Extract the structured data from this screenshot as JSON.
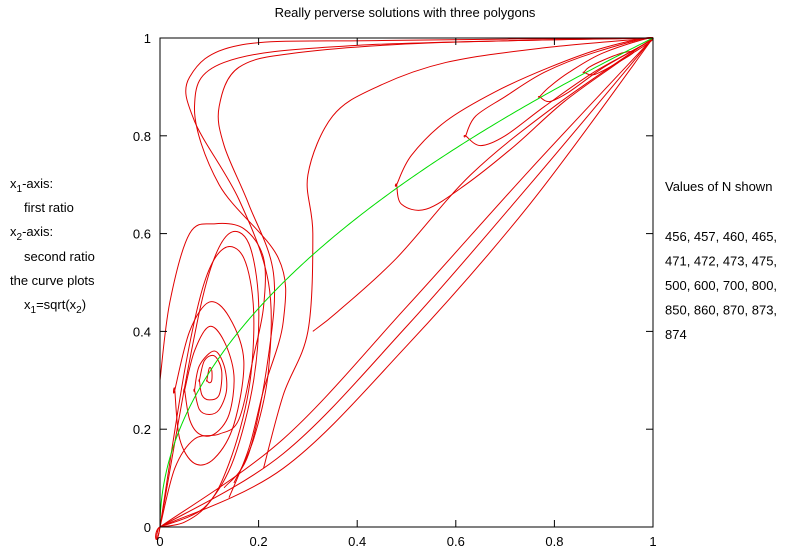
{
  "chart_data": {
    "type": "line",
    "title": "Really perverse solutions with three polygons",
    "xlabel": "",
    "ylabel": "",
    "xlim": [
      0,
      1
    ],
    "ylim": [
      0,
      1
    ],
    "xticks": [
      "0",
      "0.2",
      "0.4",
      "0.6",
      "0.8",
      "1"
    ],
    "yticks": [
      "0",
      "0.2",
      "0.4",
      "0.6",
      "0.8",
      "1"
    ],
    "grid": false,
    "legend_left": [
      {
        "label": "x",
        "sub": "1",
        "rest": "-axis:"
      },
      {
        "label": "first ratio"
      },
      {
        "label": "x",
        "sub": "2",
        "rest": "-axis:"
      },
      {
        "label": "second ratio"
      },
      {
        "label": "the curve plots"
      },
      {
        "label": "x",
        "sub": "1",
        "rest": "=sqrt(x",
        "sub2": "2",
        "rest2": ")"
      }
    ],
    "legend_right_title": "Values of N shown",
    "legend_right_lines": [
      "456, 457, 460, 465,",
      "471, 472, 473, 475,",
      "500, 600, 700, 800,",
      "850, 860, 870, 873,",
      "874"
    ],
    "colors": {
      "curves": "#e00000",
      "reference": "#00dd00",
      "axes": "#000000"
    },
    "reference_curve": {
      "name": "x1=sqrt(x2)",
      "color": "#00dd00"
    },
    "series": [
      {
        "closed": true,
        "values": [
          [
            0.0,
            0.0
          ],
          [
            0.06,
            0.34
          ],
          [
            0.1,
            0.52
          ],
          [
            0.14,
            0.6
          ],
          [
            0.18,
            0.58
          ],
          [
            0.2,
            0.46
          ],
          [
            0.19,
            0.3
          ],
          [
            0.15,
            0.14
          ],
          [
            0.1,
            0.05
          ],
          [
            0.05,
            0.01
          ],
          [
            0.0,
            0.0
          ]
        ]
      },
      {
        "closed": true,
        "values": [
          [
            0.0,
            0.0
          ],
          [
            0.05,
            0.32
          ],
          [
            0.09,
            0.5
          ],
          [
            0.13,
            0.57
          ],
          [
            0.17,
            0.55
          ],
          [
            0.19,
            0.44
          ],
          [
            0.18,
            0.28
          ],
          [
            0.14,
            0.13
          ],
          [
            0.09,
            0.04
          ],
          [
            0.0,
            0.0
          ]
        ]
      },
      {
        "closed": true,
        "values": [
          [
            0.03,
            0.28
          ],
          [
            0.06,
            0.4
          ],
          [
            0.1,
            0.46
          ],
          [
            0.14,
            0.43
          ],
          [
            0.17,
            0.34
          ],
          [
            0.15,
            0.21
          ],
          [
            0.11,
            0.14
          ],
          [
            0.07,
            0.13
          ],
          [
            0.04,
            0.18
          ],
          [
            0.03,
            0.28
          ]
        ]
      },
      {
        "closed": true,
        "values": [
          [
            0.05,
            0.28
          ],
          [
            0.07,
            0.36
          ],
          [
            0.1,
            0.41
          ],
          [
            0.13,
            0.38
          ],
          [
            0.15,
            0.31
          ],
          [
            0.14,
            0.23
          ],
          [
            0.11,
            0.19
          ],
          [
            0.08,
            0.19
          ],
          [
            0.06,
            0.22
          ],
          [
            0.05,
            0.28
          ]
        ]
      },
      {
        "closed": true,
        "values": [
          [
            0.07,
            0.28
          ],
          [
            0.08,
            0.33
          ],
          [
            0.11,
            0.36
          ],
          [
            0.13,
            0.33
          ],
          [
            0.135,
            0.28
          ],
          [
            0.12,
            0.24
          ],
          [
            0.1,
            0.23
          ],
          [
            0.08,
            0.24
          ],
          [
            0.07,
            0.28
          ]
        ]
      },
      {
        "closed": true,
        "values": [
          [
            0.08,
            0.3
          ],
          [
            0.09,
            0.34
          ],
          [
            0.11,
            0.35
          ],
          [
            0.125,
            0.32
          ],
          [
            0.12,
            0.27
          ],
          [
            0.1,
            0.26
          ],
          [
            0.085,
            0.27
          ],
          [
            0.08,
            0.3
          ]
        ]
      },
      {
        "closed": true,
        "values": [
          [
            0.095,
            0.3
          ],
          [
            0.1,
            0.325
          ],
          [
            0.105,
            0.32
          ],
          [
            0.105,
            0.3
          ],
          [
            0.1,
            0.295
          ],
          [
            0.095,
            0.3
          ]
        ]
      },
      {
        "closed": false,
        "values": [
          [
            0.0,
            0.0
          ],
          [
            0.03,
            0.12
          ],
          [
            0.07,
            0.18
          ],
          [
            0.12,
            0.19
          ],
          [
            0.16,
            0.22
          ],
          [
            0.19,
            0.35
          ],
          [
            0.21,
            0.45
          ],
          [
            0.21,
            0.55
          ],
          [
            0.17,
            0.61
          ],
          [
            0.11,
            0.62
          ],
          [
            0.06,
            0.6
          ],
          [
            0.02,
            0.46
          ],
          [
            0.0,
            0.3
          ]
        ]
      },
      {
        "closed": false,
        "values": [
          [
            0.13,
            0.08
          ],
          [
            0.18,
            0.15
          ],
          [
            0.22,
            0.35
          ],
          [
            0.23,
            0.52
          ],
          [
            0.18,
            0.66
          ],
          [
            0.13,
            0.78
          ],
          [
            0.12,
            0.86
          ],
          [
            0.16,
            0.94
          ],
          [
            0.28,
            0.97
          ],
          [
            0.55,
            0.99
          ],
          [
            1.0,
            1.0
          ]
        ]
      },
      {
        "closed": false,
        "values": [
          [
            0.15,
            0.09
          ],
          [
            0.19,
            0.18
          ],
          [
            0.22,
            0.32
          ],
          [
            0.22,
            0.5
          ],
          [
            0.16,
            0.67
          ],
          [
            0.07,
            0.83
          ],
          [
            0.06,
            0.92
          ],
          [
            0.16,
            0.985
          ],
          [
            0.45,
            0.995
          ],
          [
            1.0,
            1.0
          ]
        ]
      },
      {
        "closed": false,
        "values": [
          [
            0.14,
            0.06
          ],
          [
            0.18,
            0.16
          ],
          [
            0.21,
            0.28
          ],
          [
            0.25,
            0.42
          ],
          [
            0.24,
            0.55
          ],
          [
            0.12,
            0.7
          ],
          [
            0.07,
            0.86
          ],
          [
            0.13,
            0.95
          ],
          [
            0.4,
            0.985
          ],
          [
            1.0,
            1.0
          ]
        ]
      },
      {
        "closed": false,
        "values": [
          [
            0.21,
            0.12
          ],
          [
            0.25,
            0.27
          ],
          [
            0.3,
            0.4
          ],
          [
            0.31,
            0.6
          ],
          [
            0.3,
            0.72
          ],
          [
            0.35,
            0.84
          ],
          [
            0.44,
            0.9
          ],
          [
            0.58,
            0.95
          ],
          [
            0.78,
            0.98
          ],
          [
            1.0,
            1.0
          ]
        ]
      },
      {
        "closed": false,
        "values": [
          [
            0.31,
            0.4
          ],
          [
            0.36,
            0.44
          ],
          [
            0.48,
            0.55
          ],
          [
            0.63,
            0.72
          ],
          [
            0.8,
            0.86
          ],
          [
            1.0,
            1.0
          ]
        ]
      },
      {
        "closed": false,
        "values": [
          [
            0.0,
            0.0
          ],
          [
            0.25,
            0.12
          ],
          [
            0.5,
            0.37
          ],
          [
            0.75,
            0.66
          ],
          [
            1.0,
            1.0
          ]
        ]
      },
      {
        "closed": false,
        "values": [
          [
            0.0,
            0.0
          ],
          [
            0.25,
            0.15
          ],
          [
            0.5,
            0.41
          ],
          [
            0.75,
            0.7
          ],
          [
            1.0,
            1.0
          ]
        ]
      },
      {
        "closed": false,
        "values": [
          [
            0.0,
            0.0
          ],
          [
            0.25,
            0.18
          ],
          [
            0.5,
            0.45
          ],
          [
            0.75,
            0.73
          ],
          [
            1.0,
            1.0
          ]
        ]
      },
      {
        "closed": true,
        "values": [
          [
            0.48,
            0.7
          ],
          [
            0.49,
            0.66
          ],
          [
            0.54,
            0.65
          ],
          [
            0.62,
            0.7
          ],
          [
            0.72,
            0.78
          ],
          [
            0.82,
            0.87
          ],
          [
            0.93,
            0.95
          ],
          [
            1.0,
            1.0
          ],
          [
            0.9,
            0.98
          ],
          [
            0.79,
            0.94
          ],
          [
            0.68,
            0.89
          ],
          [
            0.58,
            0.83
          ],
          [
            0.51,
            0.76
          ],
          [
            0.48,
            0.7
          ]
        ]
      },
      {
        "closed": true,
        "values": [
          [
            0.62,
            0.8
          ],
          [
            0.65,
            0.78
          ],
          [
            0.7,
            0.8
          ],
          [
            0.78,
            0.86
          ],
          [
            0.88,
            0.93
          ],
          [
            1.0,
            1.0
          ],
          [
            0.88,
            0.97
          ],
          [
            0.78,
            0.93
          ],
          [
            0.7,
            0.88
          ],
          [
            0.64,
            0.84
          ],
          [
            0.62,
            0.8
          ]
        ]
      },
      {
        "closed": true,
        "values": [
          [
            0.77,
            0.88
          ],
          [
            0.79,
            0.87
          ],
          [
            0.83,
            0.89
          ],
          [
            0.9,
            0.94
          ],
          [
            1.0,
            1.0
          ],
          [
            0.9,
            0.97
          ],
          [
            0.83,
            0.93
          ],
          [
            0.79,
            0.9
          ],
          [
            0.77,
            0.88
          ]
        ]
      },
      {
        "closed": true,
        "values": [
          [
            0.86,
            0.93
          ],
          [
            0.88,
            0.925
          ],
          [
            0.92,
            0.945
          ],
          [
            0.96,
            0.97
          ],
          [
            0.94,
            0.97
          ],
          [
            0.9,
            0.955
          ],
          [
            0.87,
            0.94
          ],
          [
            0.86,
            0.93
          ]
        ]
      }
    ]
  }
}
